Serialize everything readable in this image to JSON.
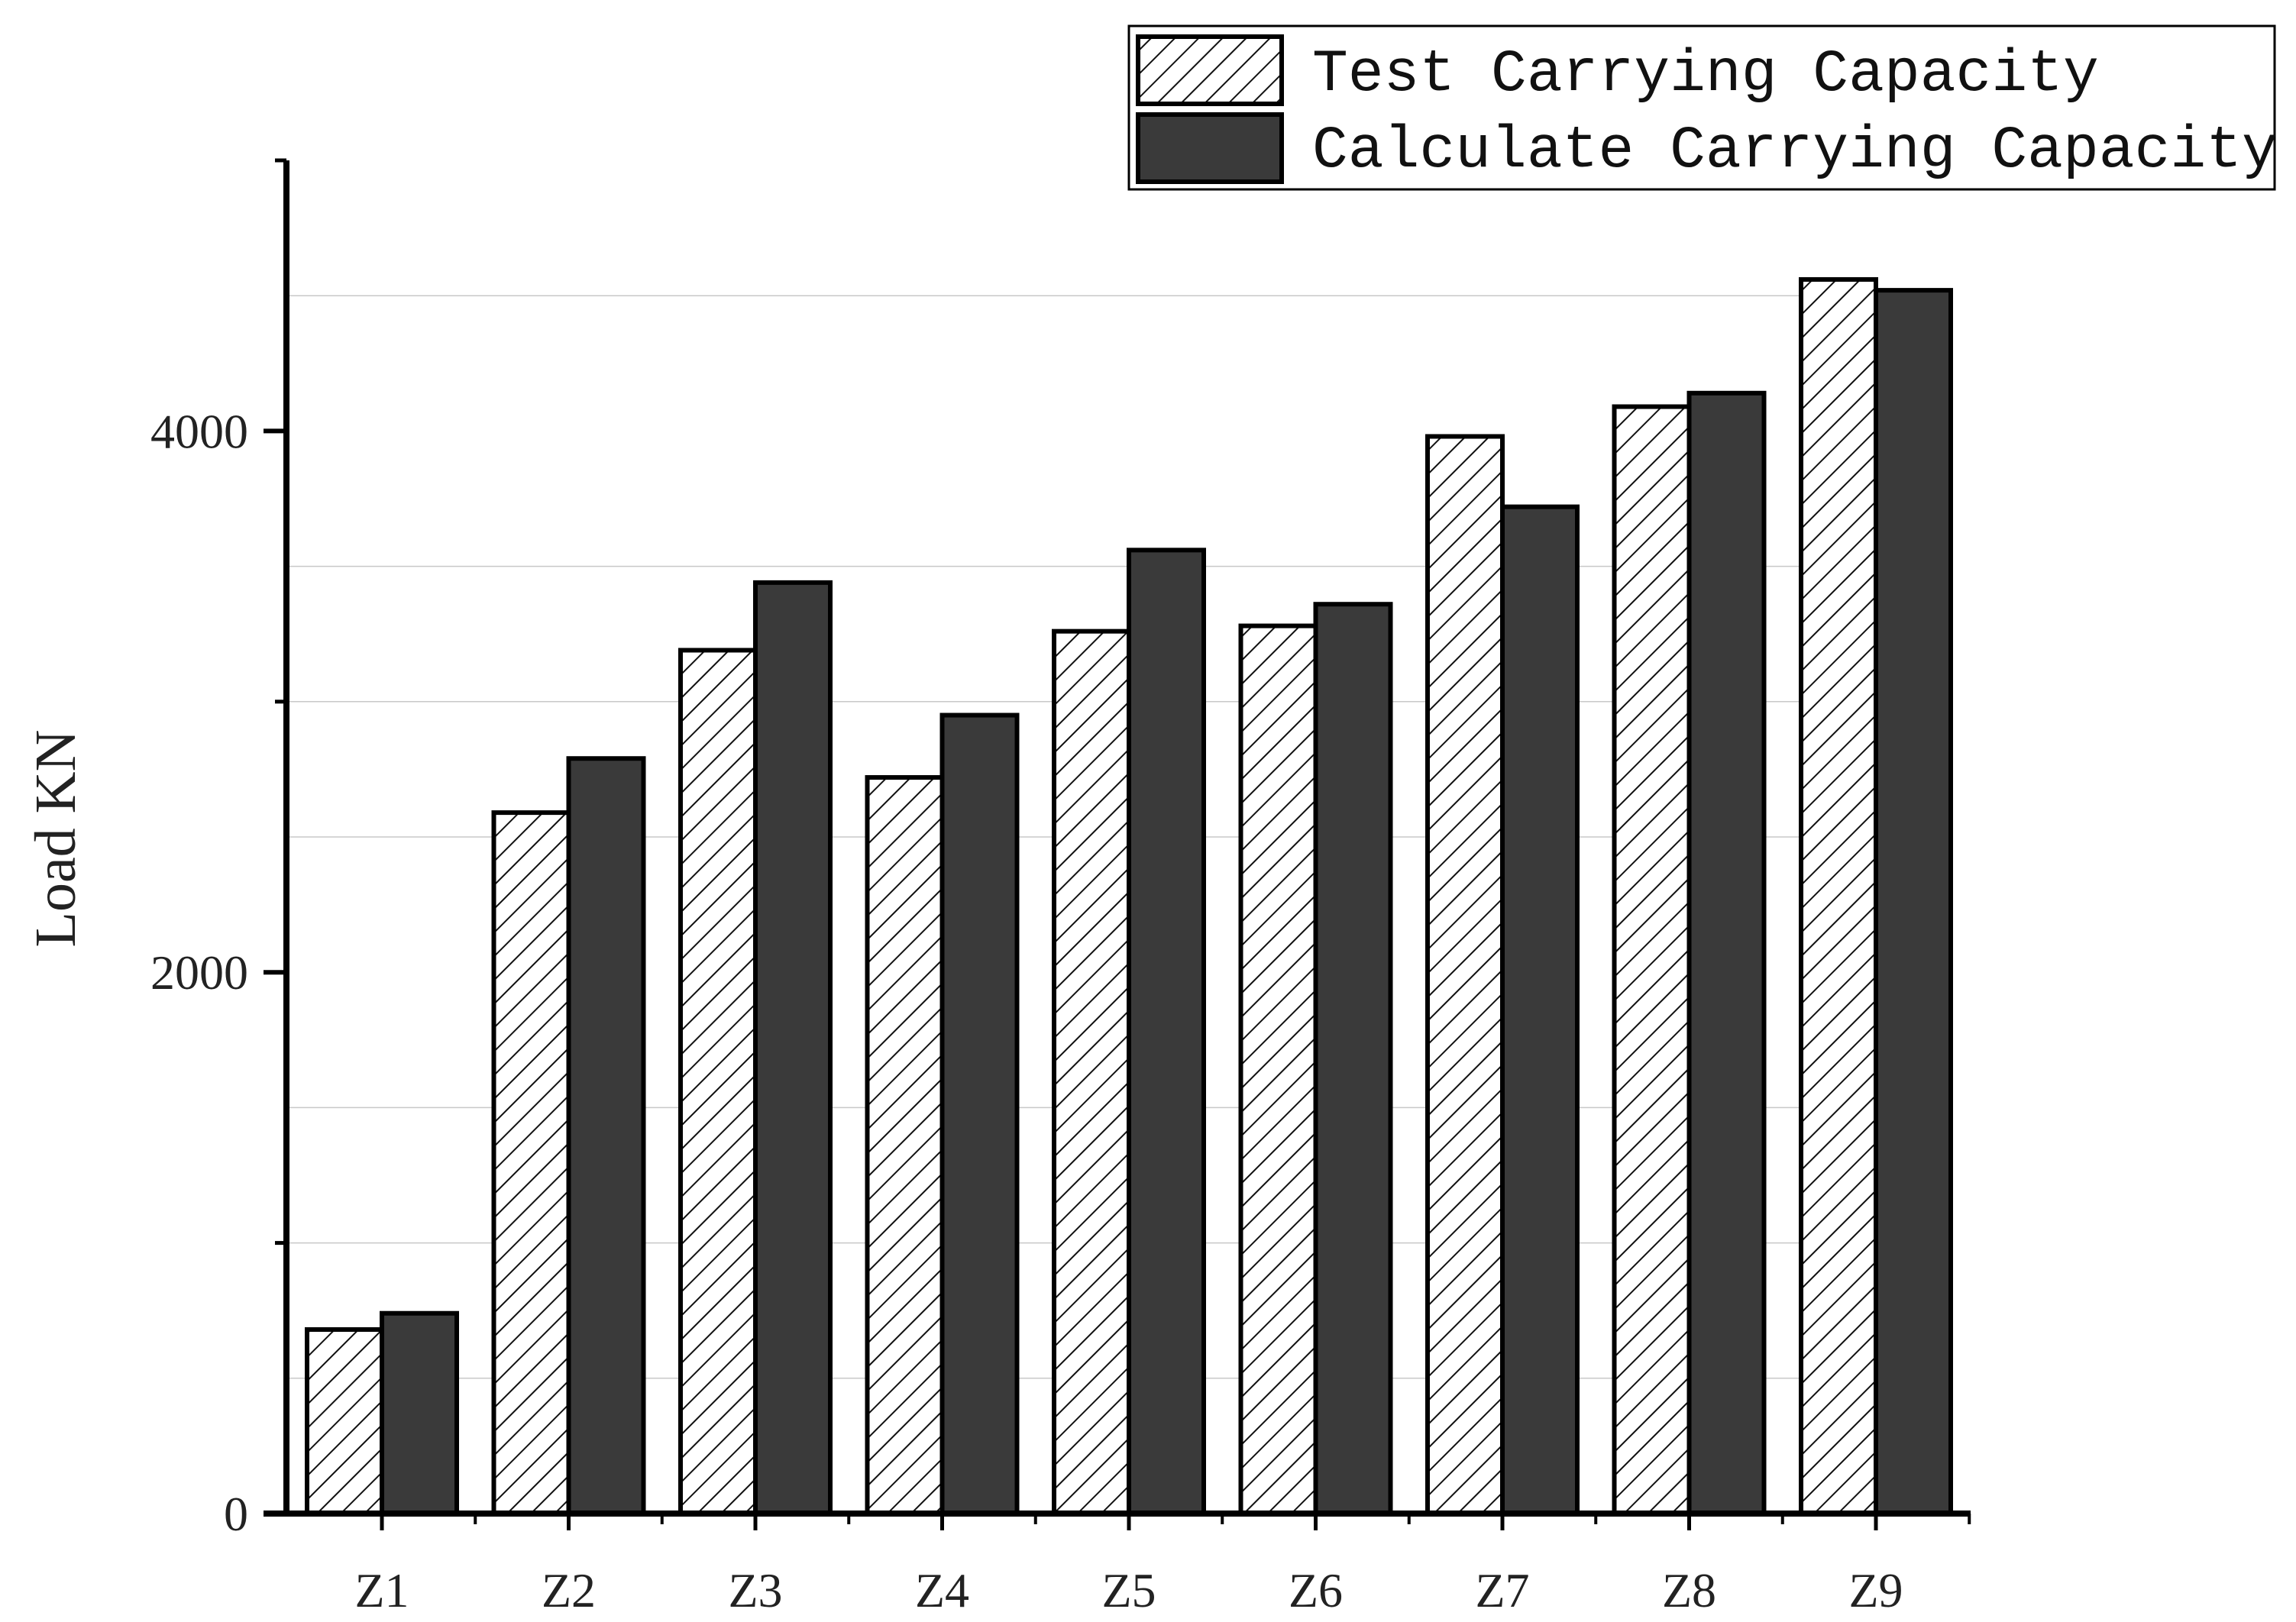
{
  "chart_data": {
    "type": "bar",
    "title": "",
    "xlabel": "",
    "ylabel": "Load KN",
    "ylim": [
      0,
      5000
    ],
    "yticks": [
      0,
      2000,
      4000
    ],
    "grid": false,
    "legend_position": "top-right",
    "categories": [
      "Z1",
      "Z2",
      "Z3",
      "Z4",
      "Z5",
      "Z6",
      "Z7",
      "Z8",
      "Z9"
    ],
    "series": [
      {
        "name": "Test Carrying Capacity",
        "pattern": "hatched",
        "fill_color": "#ffffff",
        "values": [
          680,
          2590,
          3190,
          2720,
          3260,
          3280,
          3980,
          4090,
          4560
        ]
      },
      {
        "name": "Calculate Carrying Capacity",
        "pattern": "solid",
        "fill_color": "#3a3a3a",
        "values": [
          740,
          2790,
          3440,
          2950,
          3560,
          3360,
          3720,
          4140,
          4520
        ]
      }
    ]
  }
}
